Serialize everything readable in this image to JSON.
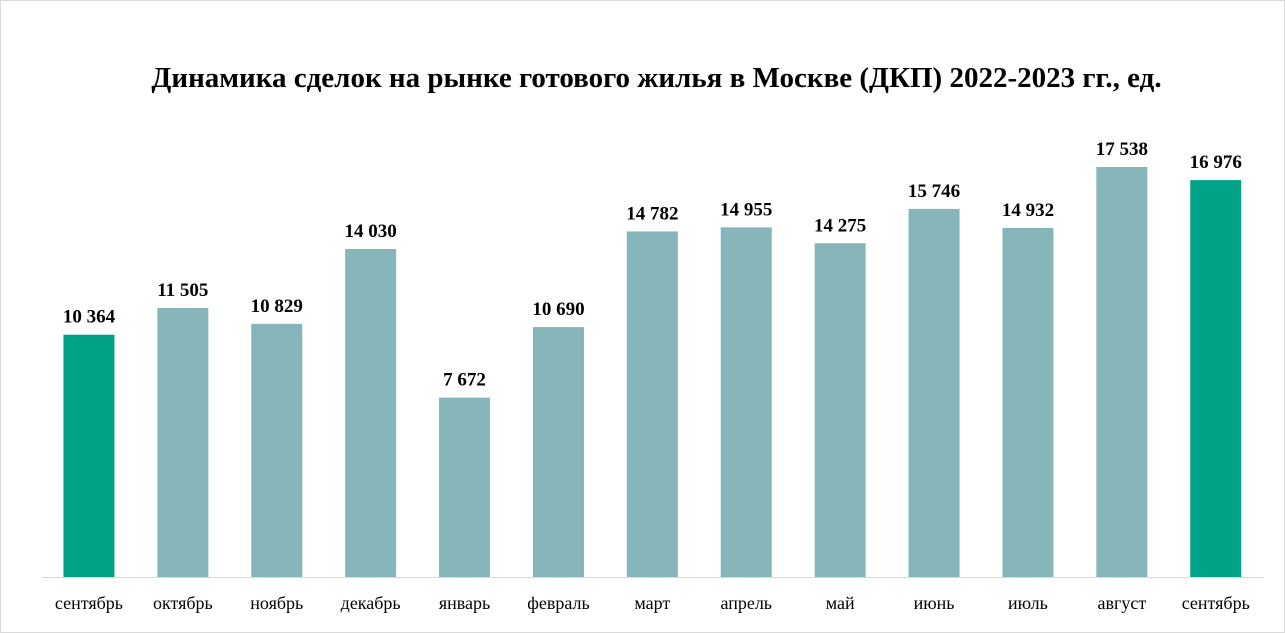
{
  "chart_data": {
    "type": "bar",
    "title": "Динамика сделок на рынке готового жилья в Москве (ДКП) 2022-2023 гг., ед.",
    "xlabel": "",
    "ylabel": "",
    "ylim": [
      0,
      19000
    ],
    "grid": false,
    "legend": "none",
    "categories": [
      "сентябрь",
      "октябрь",
      "ноябрь",
      "декабрь",
      "январь",
      "февраль",
      "март",
      "апрель",
      "май",
      "июнь",
      "июль",
      "август",
      "сентябрь"
    ],
    "values": [
      10364,
      11505,
      10829,
      14030,
      7672,
      10690,
      14782,
      14955,
      14275,
      15746,
      14932,
      17538,
      16976
    ],
    "value_labels": [
      "10 364",
      "11 505",
      "10 829",
      "14 030",
      "7 672",
      "10 690",
      "14 782",
      "14 955",
      "14 275",
      "15 746",
      "14 932",
      "17 538",
      "16 976"
    ],
    "highlighted": [
      true,
      false,
      false,
      false,
      false,
      false,
      false,
      false,
      false,
      false,
      false,
      false,
      true
    ]
  },
  "colors": {
    "bar": "#86b5ba",
    "highlight": "#00a386",
    "axis": "#d9d9d9"
  }
}
